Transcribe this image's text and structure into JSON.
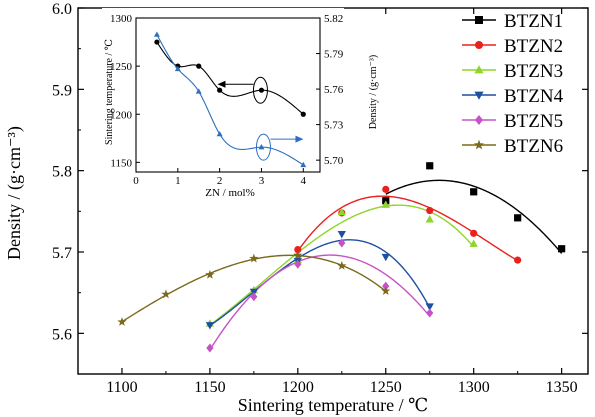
{
  "chart_data": [
    {
      "type": "line",
      "xlabel": "Sintering temperature / ℃",
      "ylabel": "Density / (g·cm⁻³)",
      "xlim": [
        1075,
        1365
      ],
      "ylim": [
        5.55,
        6.0
      ],
      "x_ticks": [
        1100,
        1150,
        1200,
        1250,
        1300,
        1350
      ],
      "y_ticks": [
        5.6,
        5.7,
        5.8,
        5.9,
        6.0
      ],
      "x_tick_labels": [
        "1100",
        "1150",
        "1200",
        "1250",
        "1300",
        "1350"
      ],
      "y_tick_labels": [
        "5.6",
        "5.7",
        "5.8",
        "5.9",
        "6.0"
      ],
      "legend_position": "top-right",
      "series": [
        {
          "name": "BTZN1",
          "color": "#000000",
          "marker": "square",
          "x": [
            1250,
            1275,
            1300,
            1325,
            1350
          ],
          "y": [
            5.763,
            5.806,
            5.774,
            5.742,
            5.704
          ]
        },
        {
          "name": "BTZN2",
          "color": "#e8201e",
          "marker": "circle",
          "x": [
            1200,
            1225,
            1250,
            1275,
            1300,
            1325
          ],
          "y": [
            5.703,
            5.748,
            5.777,
            5.751,
            5.723,
            5.69
          ]
        },
        {
          "name": "BTZN3",
          "color": "#8ed628",
          "marker": "triangle-up",
          "x": [
            1150,
            1175,
            1200,
            1225,
            1250,
            1275,
            1300
          ],
          "y": [
            5.612,
            5.653,
            5.69,
            5.749,
            5.758,
            5.74,
            5.71
          ]
        },
        {
          "name": "BTZN4",
          "color": "#1f4fa0",
          "marker": "triangle-down",
          "x": [
            1150,
            1175,
            1200,
            1225,
            1250,
            1275
          ],
          "y": [
            5.61,
            5.651,
            5.689,
            5.722,
            5.694,
            5.633
          ]
        },
        {
          "name": "BTZN5",
          "color": "#c653c6",
          "marker": "diamond",
          "x": [
            1150,
            1175,
            1200,
            1225,
            1250,
            1275
          ],
          "y": [
            5.582,
            5.645,
            5.685,
            5.711,
            5.658,
            5.625
          ]
        },
        {
          "name": "BTZN6",
          "color": "#7a6a1a",
          "marker": "star",
          "x": [
            1100,
            1125,
            1150,
            1175,
            1200,
            1225,
            1250
          ],
          "y": [
            5.614,
            5.648,
            5.672,
            5.692,
            5.696,
            5.683,
            5.652
          ]
        }
      ]
    },
    {
      "type": "line",
      "xlabel": "ZN / mol%",
      "ylabel": "Sintering temperature / ℃",
      "y2label": "Density / (g·cm⁻³)",
      "xlim": [
        0,
        4.4
      ],
      "ylim": [
        1140,
        1300
      ],
      "y2lim": [
        5.69,
        5.82
      ],
      "x_ticks": [
        0,
        1,
        2,
        3,
        4
      ],
      "y_ticks": [
        1150,
        1200,
        1250,
        1300
      ],
      "y2_ticks": [
        5.7,
        5.73,
        5.76,
        5.79,
        5.82
      ],
      "x_tick_labels": [
        "0",
        "1",
        "2",
        "3",
        "4"
      ],
      "y_tick_labels": [
        "1150",
        "1200",
        "1250",
        "1300"
      ],
      "y2_tick_labels": [
        "5.70",
        "5.73",
        "5.76",
        "5.79",
        "5.82"
      ],
      "series": [
        {
          "axis": "left",
          "color": "#000000",
          "marker": "circle",
          "x": [
            0.5,
            1.0,
            1.5,
            2.0,
            3.0,
            4.0
          ],
          "y": [
            1275,
            1250,
            1250,
            1225,
            1225,
            1200
          ]
        },
        {
          "axis": "right",
          "color": "#2e6fc0",
          "marker": "triangle-up",
          "x": [
            0.5,
            1.0,
            1.5,
            2.0,
            3.0,
            4.0
          ],
          "y": [
            5.806,
            5.777,
            5.758,
            5.722,
            5.711,
            5.696
          ]
        }
      ]
    }
  ]
}
